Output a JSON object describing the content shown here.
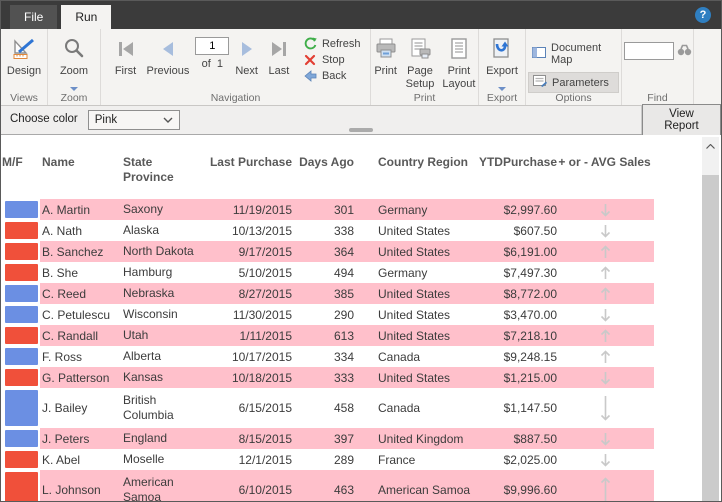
{
  "window": {
    "help_label": "?"
  },
  "tabs": {
    "file": "File",
    "run": "Run"
  },
  "ribbon": {
    "views": {
      "design": "Design",
      "group": "Views"
    },
    "zoom": {
      "zoom": "Zoom",
      "group": "Zoom"
    },
    "navigation": {
      "first": "First",
      "previous": "Previous",
      "page_value": "1",
      "of_label": "of",
      "page_total": "1",
      "next": "Next",
      "last": "Last",
      "refresh": "Refresh",
      "stop": "Stop",
      "back": "Back",
      "group": "Navigation"
    },
    "print": {
      "print": "Print",
      "page_setup": "Page Setup",
      "print_layout": "Print Layout",
      "group": "Print"
    },
    "export": {
      "export": "Export",
      "group": "Export"
    },
    "options": {
      "document_map": "Document Map",
      "parameters": "Parameters",
      "group": "Options"
    },
    "find": {
      "input_value": "",
      "group": "Find"
    }
  },
  "parameters_bar": {
    "label": "Choose color",
    "selected_value": "Pink",
    "view_report": "View Report"
  },
  "table": {
    "headers": {
      "mf": "M/F",
      "name": "Name",
      "state": "State Province",
      "last_purchase": "Last Purchase",
      "days_ago": "Days Ago",
      "country": "Country Region",
      "ytd": "YTDPurchase",
      "avg": "+ or - AVG Sales"
    },
    "rows": [
      {
        "color": "blue",
        "name": "A. Martin",
        "state": "Saxony",
        "last": "11/19/2015",
        "days": "301",
        "country": "Germany",
        "ytd": "$2,997.60",
        "trend": "down",
        "tall": false
      },
      {
        "color": "red",
        "name": "A. Nath",
        "state": "Alaska",
        "last": "10/13/2015",
        "days": "338",
        "country": "United States",
        "ytd": "$607.50",
        "trend": "down",
        "tall": false
      },
      {
        "color": "red",
        "name": "B. Sanchez",
        "state": "North Dakota",
        "last": "9/17/2015",
        "days": "364",
        "country": "United States",
        "ytd": "$6,191.00",
        "trend": "up",
        "tall": false
      },
      {
        "color": "red",
        "name": "B. She",
        "state": "Hamburg",
        "last": "5/10/2015",
        "days": "494",
        "country": "Germany",
        "ytd": "$7,497.30",
        "trend": "up",
        "tall": false
      },
      {
        "color": "blue",
        "name": "C. Reed",
        "state": "Nebraska",
        "last": "8/27/2015",
        "days": "385",
        "country": "United States",
        "ytd": "$8,772.00",
        "trend": "up",
        "tall": false
      },
      {
        "color": "blue",
        "name": "C. Petulescu",
        "state": "Wisconsin",
        "last": "11/30/2015",
        "days": "290",
        "country": "United States",
        "ytd": "$3,470.00",
        "trend": "down",
        "tall": false
      },
      {
        "color": "red",
        "name": "C. Randall",
        "state": "Utah",
        "last": "1/11/2015",
        "days": "613",
        "country": "United States",
        "ytd": "$7,218.10",
        "trend": "up",
        "tall": false
      },
      {
        "color": "blue",
        "name": "F. Ross",
        "state": "Alberta",
        "last": "10/17/2015",
        "days": "334",
        "country": "Canada",
        "ytd": "$9,248.15",
        "trend": "up",
        "tall": false
      },
      {
        "color": "red",
        "name": "G. Patterson",
        "state": "Kansas",
        "last": "10/18/2015",
        "days": "333",
        "country": "United States",
        "ytd": "$1,215.00",
        "trend": "down",
        "tall": false
      },
      {
        "color": "blue",
        "name": "J. Bailey",
        "state": "British Columbia",
        "last": "6/15/2015",
        "days": "458",
        "country": "Canada",
        "ytd": "$1,147.50",
        "trend": "down",
        "tall": true
      },
      {
        "color": "blue",
        "name": "J. Peters",
        "state": "England",
        "last": "8/15/2015",
        "days": "397",
        "country": "United Kingdom",
        "ytd": "$887.50",
        "trend": "down",
        "tall": false
      },
      {
        "color": "red",
        "name": "K. Abel",
        "state": "Moselle",
        "last": "12/1/2015",
        "days": "289",
        "country": "France",
        "ytd": "$2,025.00",
        "trend": "down",
        "tall": false
      },
      {
        "color": "red",
        "name": "L. Johnson",
        "state": "American Samoa",
        "last": "6/10/2015",
        "days": "463",
        "country": "American Samoa",
        "ytd": "$9,996.60",
        "trend": "up",
        "tall": true
      }
    ]
  },
  "colors": {
    "pink": "#ffc0cb",
    "male_blue": "#6b8fe3",
    "female_red": "#f0503a",
    "arrow_gray": "#c9c9c9"
  }
}
